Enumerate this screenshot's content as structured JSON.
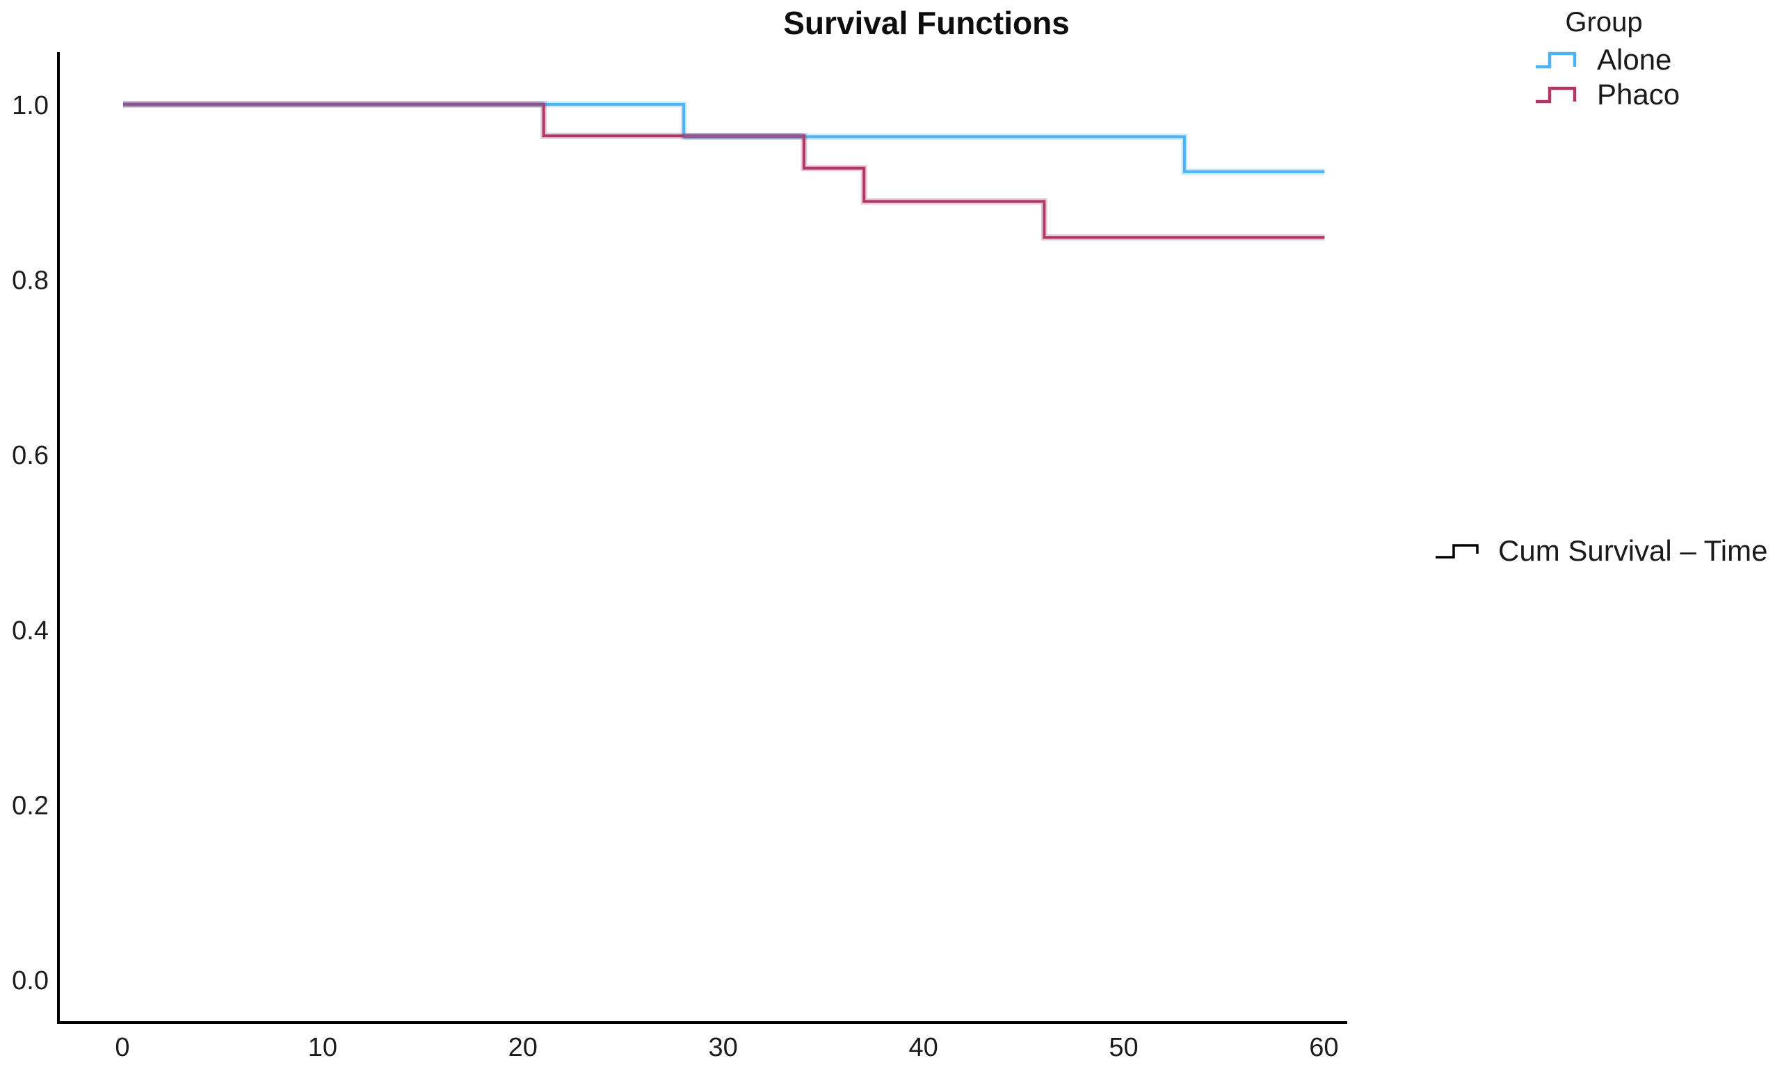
{
  "chart_data": {
    "type": "line",
    "subtype": "kaplan-meier-step",
    "title": "Survival Functions",
    "legend": {
      "title": "Group",
      "position": "top-right"
    },
    "series": [
      {
        "name": "Alone",
        "color": "#4FB3F2",
        "points": [
          [
            0,
            1.0
          ],
          [
            28,
            1.0
          ],
          [
            28,
            0.963
          ],
          [
            53,
            0.963
          ],
          [
            53,
            0.923
          ],
          [
            60,
            0.923
          ]
        ]
      },
      {
        "name": "Phaco",
        "color": "#AD3A66",
        "points": [
          [
            0,
            1.0
          ],
          [
            21,
            1.0
          ],
          [
            21,
            0.964
          ],
          [
            34,
            0.964
          ],
          [
            34,
            0.927
          ],
          [
            37,
            0.927
          ],
          [
            37,
            0.889
          ],
          [
            46,
            0.889
          ],
          [
            46,
            0.848
          ],
          [
            60,
            0.848
          ]
        ]
      }
    ],
    "overlap_color": "#8A5891",
    "x_ticks": [
      0,
      10,
      20,
      30,
      40,
      50,
      60
    ],
    "y_ticks": [
      "1.0",
      "0.8",
      "0.6",
      "0.4",
      "0.2",
      "0.0"
    ],
    "xlim": [
      0,
      60
    ],
    "ylim": [
      0.0,
      1.0
    ],
    "grid": false,
    "xlabel": "",
    "ylabel": "",
    "annotation": "Cum Survival – Time",
    "axis_color": "#000000",
    "text_color": "#1c1c1c"
  }
}
